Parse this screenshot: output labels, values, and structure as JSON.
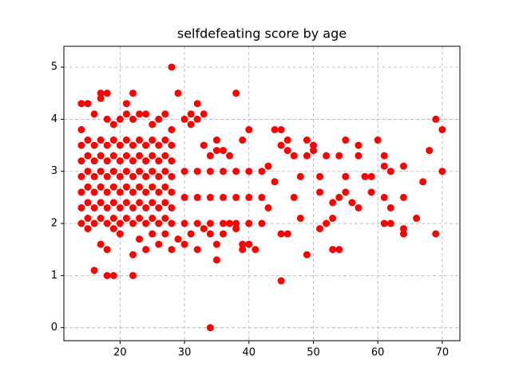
{
  "chart_data": {
    "type": "scatter",
    "title": "selfdefeating score by age",
    "color": "#ff0000",
    "grid": true,
    "xlim": [
      11.28,
      72.74
    ],
    "ylim": [
      -0.25,
      5.4
    ],
    "xticks": [
      20,
      30,
      40,
      50,
      60,
      70
    ],
    "yticks": [
      0,
      1,
      2,
      3,
      4,
      5
    ],
    "x": [
      28,
      34,
      16,
      18,
      19,
      22,
      45,
      35,
      49,
      53,
      54,
      69,
      70,
      69,
      70,
      68,
      67,
      66,
      64,
      64,
      64,
      64,
      62,
      61,
      62,
      61,
      62,
      61,
      61,
      60,
      59,
      59,
      58,
      57,
      57,
      57,
      56,
      55,
      55,
      55,
      54,
      54,
      53,
      53,
      52,
      52,
      51,
      51,
      51,
      50,
      50,
      49,
      49,
      48,
      48,
      47,
      47,
      46,
      46,
      46,
      45,
      45,
      45,
      44,
      44,
      43,
      43,
      38,
      40,
      39,
      37,
      36,
      35,
      33,
      32,
      33,
      31,
      30,
      29,
      27,
      24,
      22,
      21,
      17,
      18,
      17,
      14,
      15,
      16,
      14,
      14,
      14,
      14,
      14,
      14,
      14,
      16,
      16,
      16,
      16,
      16,
      16,
      18,
      18,
      18,
      18,
      18,
      18,
      20,
      20,
      20,
      20,
      20,
      20,
      22,
      22,
      22,
      22,
      22,
      22,
      24,
      24,
      24,
      24,
      24,
      24,
      26,
      26,
      26,
      26,
      26,
      26,
      28,
      28,
      28,
      28,
      28,
      28,
      15,
      15,
      15,
      15,
      15,
      15,
      17,
      17,
      17,
      17,
      17,
      17,
      19,
      19,
      19,
      19,
      19,
      19,
      21,
      21,
      21,
      21,
      21,
      21,
      23,
      23,
      23,
      23,
      23,
      23,
      25,
      25,
      25,
      25,
      25,
      25,
      27,
      27,
      27,
      27,
      27,
      27,
      30,
      30,
      30,
      32,
      32,
      32,
      34,
      34,
      34,
      36,
      36,
      36,
      38,
      38,
      38,
      40,
      40,
      40,
      42,
      42,
      42,
      17,
      18,
      20,
      22,
      24,
      26,
      28,
      30,
      32,
      34,
      36,
      39,
      40,
      41,
      15,
      19,
      23,
      25,
      27,
      29,
      31,
      33,
      35,
      37,
      38,
      39,
      18,
      19,
      20,
      21,
      22,
      23,
      25,
      26,
      28,
      31,
      32,
      34,
      35
    ],
    "values": [
      5,
      0,
      1.1,
      1,
      1,
      1,
      0.9,
      1.3,
      1.4,
      1.5,
      1.5,
      1.8,
      3.8,
      4,
      3,
      3.4,
      2.8,
      2.1,
      1.8,
      1.9,
      2.5,
      3.1,
      2,
      2,
      2.3,
      2.5,
      3,
      3.1,
      3.3,
      3.6,
      2.6,
      2.9,
      2.9,
      3.5,
      3.3,
      2.3,
      2.4,
      3.6,
      2.9,
      2.6,
      3.3,
      2.5,
      2.4,
      2.1,
      2,
      3.3,
      1.9,
      2.6,
      2.9,
      3.5,
      3.4,
      3.6,
      3.3,
      2.1,
      2.9,
      2.5,
      3.3,
      3.6,
      3.4,
      1.8,
      1.8,
      3.5,
      3.8,
      3.8,
      2.8,
      3.1,
      2.3,
      4.5,
      3.8,
      3.6,
      3.3,
      3.4,
      3.6,
      3.5,
      4.3,
      4.1,
      4.1,
      4,
      4.5,
      4.1,
      4.1,
      4.5,
      4.3,
      4.5,
      4.5,
      4.4,
      4.3,
      4.3,
      4.1,
      3.8,
      2.0,
      2.3,
      2.6,
      2.9,
      3.2,
      3.5,
      2.0,
      2.3,
      2.6,
      2.9,
      3.2,
      3.5,
      2.0,
      2.3,
      2.6,
      2.9,
      3.2,
      3.5,
      2.0,
      2.3,
      2.6,
      2.9,
      3.2,
      3.5,
      2.0,
      2.3,
      2.6,
      2.9,
      3.2,
      3.5,
      2.0,
      2.3,
      2.6,
      2.9,
      3.2,
      3.5,
      2.0,
      2.3,
      2.6,
      2.9,
      3.2,
      3.5,
      2.0,
      2.3,
      2.6,
      2.9,
      3.2,
      3.5,
      2.1,
      2.4,
      2.7,
      3.0,
      3.3,
      3.6,
      2.1,
      2.4,
      2.7,
      3.0,
      3.3,
      3.6,
      2.1,
      2.4,
      2.7,
      3.0,
      3.3,
      3.6,
      2.1,
      2.4,
      2.7,
      3.0,
      3.3,
      3.6,
      2.1,
      2.4,
      2.7,
      3.0,
      3.3,
      3.6,
      2.1,
      2.4,
      2.7,
      3.0,
      3.3,
      3.6,
      2.1,
      2.4,
      2.7,
      3.0,
      3.3,
      3.6,
      2.0,
      2.5,
      3.0,
      2.0,
      2.5,
      3.0,
      2.0,
      2.5,
      3.0,
      2.0,
      2.5,
      3.0,
      2.0,
      2.5,
      3.0,
      2.0,
      2.5,
      3.0,
      2.0,
      2.5,
      3.0,
      1.6,
      1.5,
      1.8,
      1.4,
      1.5,
      1.6,
      1.5,
      1.6,
      1.5,
      1.8,
      1.8,
      1.6,
      1.6,
      1.5,
      1.9,
      1.9,
      1.7,
      1.8,
      1.8,
      1.7,
      1.8,
      1.9,
      1.6,
      2.0,
      1.9,
      1.5,
      4,
      3.9,
      4,
      4.1,
      4,
      4.1,
      3.9,
      4,
      3.8,
      3.9,
      4,
      3.3,
      3.4
    ]
  }
}
